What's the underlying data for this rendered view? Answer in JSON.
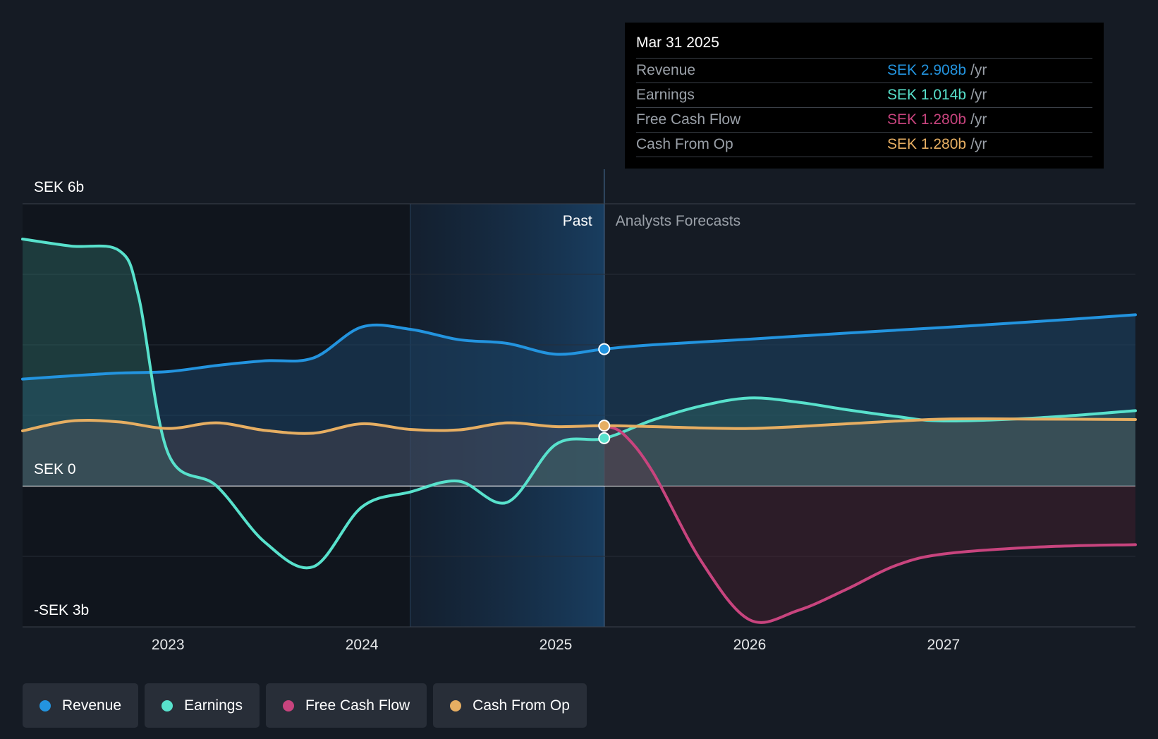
{
  "chart_data": {
    "type": "line",
    "currency_note": "SEK",
    "y_labels": {
      "top": "SEK 6b",
      "zero": "SEK 0",
      "bottom": "-SEK 3b"
    },
    "ylim": [
      -3,
      6
    ],
    "x_ticks": [
      "2023",
      "2024",
      "2025",
      "2026",
      "2027"
    ],
    "xlim": [
      2022.25,
      2027.99
    ],
    "past_label": "Past",
    "forecast_label": "Analysts Forecasts",
    "divider_x": 2025.25,
    "shade_start_x": 2024.25,
    "series": [
      {
        "name": "Revenue",
        "color": "#2394df",
        "x": [
          2022.25,
          2022.5,
          2022.75,
          2023.0,
          2023.25,
          2023.5,
          2023.75,
          2024.0,
          2024.25,
          2024.5,
          2024.75,
          2025.0,
          2025.25,
          2025.5,
          2026.0,
          2026.5,
          2027.0,
          2027.5,
          2027.99
        ],
        "values": [
          2.27,
          2.34,
          2.4,
          2.43,
          2.56,
          2.66,
          2.72,
          3.38,
          3.33,
          3.11,
          3.03,
          2.8,
          2.91,
          3.0,
          3.12,
          3.25,
          3.37,
          3.5,
          3.64
        ]
      },
      {
        "name": "Earnings",
        "color": "#58e1cc",
        "x": [
          2022.25,
          2022.5,
          2022.75,
          2022.85,
          2023.0,
          2023.25,
          2023.5,
          2023.75,
          2024.0,
          2024.25,
          2024.5,
          2024.75,
          2025.0,
          2025.25,
          2025.5,
          2025.75,
          2026.0,
          2026.25,
          2026.5,
          2026.75,
          2027.0,
          2027.5,
          2027.99
        ],
        "values": [
          5.25,
          5.1,
          5.0,
          4.0,
          0.7,
          0.0,
          -1.2,
          -1.72,
          -0.45,
          -0.13,
          0.1,
          -0.35,
          0.88,
          1.01,
          1.4,
          1.7,
          1.87,
          1.78,
          1.62,
          1.48,
          1.38,
          1.45,
          1.6
        ]
      },
      {
        "name": "Free Cash Flow",
        "color": "#c8447e",
        "x": [
          2025.25,
          2025.35,
          2025.5,
          2025.75,
          2026.0,
          2026.25,
          2026.5,
          2026.75,
          2027.0,
          2027.5,
          2027.99
        ],
        "values": [
          1.28,
          1.1,
          0.3,
          -1.6,
          -2.85,
          -2.65,
          -2.2,
          -1.7,
          -1.45,
          -1.3,
          -1.25
        ]
      },
      {
        "name": "Cash From Op",
        "color": "#e6ae62",
        "x": [
          2022.25,
          2022.5,
          2022.75,
          2023.0,
          2023.25,
          2023.5,
          2023.75,
          2024.0,
          2024.25,
          2024.5,
          2024.75,
          2025.0,
          2025.25,
          2025.5,
          2026.0,
          2026.5,
          2027.0,
          2027.5,
          2027.99
        ],
        "values": [
          1.17,
          1.38,
          1.36,
          1.22,
          1.34,
          1.18,
          1.12,
          1.32,
          1.2,
          1.19,
          1.34,
          1.26,
          1.28,
          1.26,
          1.22,
          1.32,
          1.42,
          1.42,
          1.41
        ]
      }
    ],
    "highlight_points": [
      {
        "series": "Revenue",
        "x": 2025.25,
        "y": 2.908
      },
      {
        "series": "Cash From Op",
        "x": 2025.25,
        "y": 1.28
      },
      {
        "series": "Earnings",
        "x": 2025.25,
        "y": 1.014
      }
    ]
  },
  "tooltip": {
    "date": "Mar 31 2025",
    "rows": [
      {
        "label": "Revenue",
        "value": "SEK 2.908b",
        "unit": "/yr",
        "color": "#2394df"
      },
      {
        "label": "Earnings",
        "value": "SEK 1.014b",
        "unit": "/yr",
        "color": "#58e1cc"
      },
      {
        "label": "Free Cash Flow",
        "value": "SEK 1.280b",
        "unit": "/yr",
        "color": "#c8447e"
      },
      {
        "label": "Cash From Op",
        "value": "SEK 1.280b",
        "unit": "/yr",
        "color": "#e6ae62"
      }
    ]
  },
  "legend": [
    {
      "label": "Revenue",
      "color": "#2394df"
    },
    {
      "label": "Earnings",
      "color": "#58e1cc"
    },
    {
      "label": "Free Cash Flow",
      "color": "#c8447e"
    },
    {
      "label": "Cash From Op",
      "color": "#e6ae62"
    }
  ]
}
